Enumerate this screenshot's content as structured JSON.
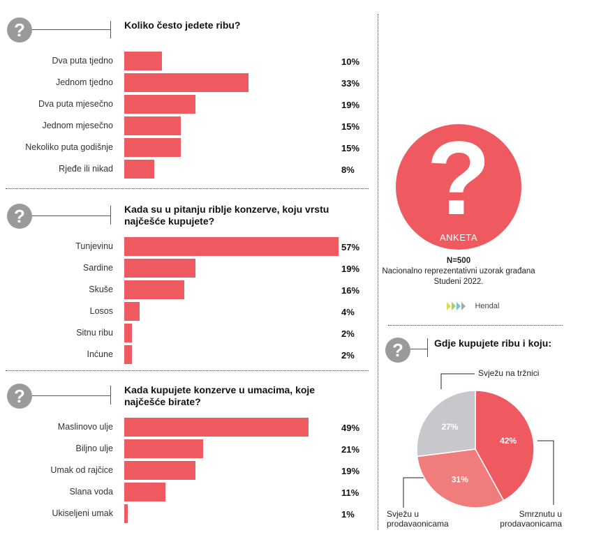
{
  "colors": {
    "bar": "#ee5a5f",
    "icon": "#9a9a9a",
    "pie_light": "#f07c7c",
    "pie_grey": "#c8c8cc"
  },
  "icon_char": "?",
  "chart_data": [
    {
      "type": "bar",
      "title": "Koliko često jedete ribu?",
      "categories": [
        "Dva puta tjedno",
        "Jednom tjedno",
        "Dva puta mjesečno",
        "Jednom mjesečno",
        "Nekoliko puta godišnje",
        "Rjeđe ili nikad"
      ],
      "values": [
        10,
        33,
        19,
        15,
        15,
        8
      ],
      "labels": [
        "10%",
        "33%",
        "19%",
        "15%",
        "15%",
        "8%"
      ]
    },
    {
      "type": "bar",
      "title": "Kada su u pitanju riblje konzerve, koju vrstu najčešće kupujete?",
      "title_lines": [
        "Kada su u pitanju riblje konzerve, koju vrstu",
        "najčešće kupujete?"
      ],
      "categories": [
        "Tunjevinu",
        "Sardine",
        "Skuše",
        "Losos",
        "Sitnu ribu",
        "Inćune"
      ],
      "values": [
        57,
        19,
        16,
        4,
        2,
        2
      ],
      "labels": [
        "57%",
        "19%",
        "16%",
        "4%",
        "2%",
        "2%"
      ]
    },
    {
      "type": "bar",
      "title": "Kada kupujete konzerve u umacima, koje najčešće birate?",
      "title_lines": [
        "Kada kupujete konzerve u umacima, koje",
        "najčešće birate?"
      ],
      "categories": [
        "Maslinovo ulje",
        "Biljno ulje",
        "Umak od rajčice",
        "Slana voda",
        "Ukiseljeni umak"
      ],
      "values": [
        49,
        21,
        19,
        11,
        1
      ],
      "labels": [
        "49%",
        "21%",
        "19%",
        "11%",
        "1%"
      ]
    },
    {
      "type": "pie",
      "title": "Gdje kupujete ribu i koju:",
      "slices": [
        {
          "name": "Smrznutu u prodavaonicama",
          "name_lines": [
            "Smrznutu u",
            "prodavaonicama"
          ],
          "value": 42,
          "label": "42%",
          "color": "#ee5a5f"
        },
        {
          "name": "Svježu u prodavaonicama",
          "name_lines": [
            "Svježu u",
            "prodavaonicama"
          ],
          "value": 31,
          "label": "31%",
          "color": "#f07c7c"
        },
        {
          "name": "Svježu na tržnici",
          "name_lines": [
            "Svježu na tržnici"
          ],
          "value": 27,
          "label": "27%",
          "color": "#c8c8cc"
        }
      ]
    }
  ],
  "anketa": {
    "label": "ANKETA",
    "n": "N=500",
    "desc": "Nacionalno reprezentativni uzorak građana",
    "date": "Studeni 2022.",
    "brand": "Hendal"
  }
}
